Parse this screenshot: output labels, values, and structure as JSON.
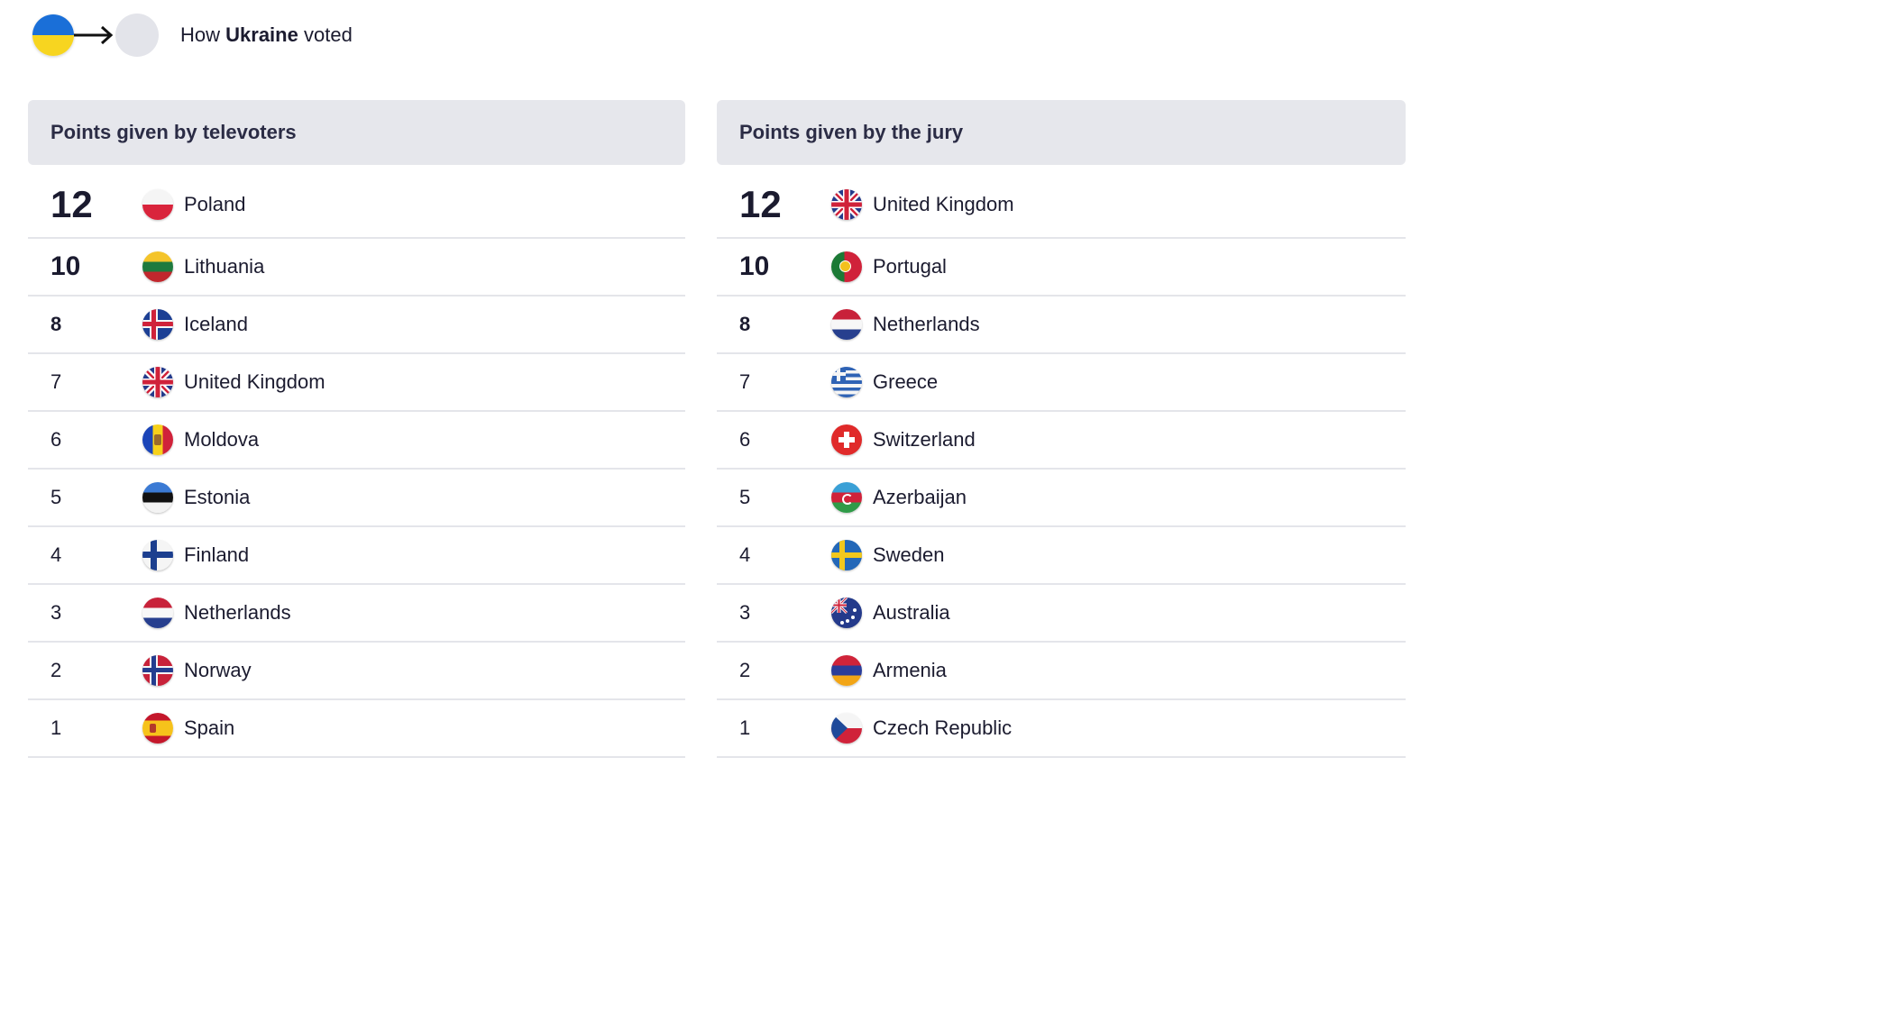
{
  "header": {
    "prefix": "How",
    "country": "Ukraine",
    "suffix": "voted"
  },
  "televoters": {
    "title": "Points given by televoters",
    "rows": [
      {
        "points": "12",
        "country": "Poland",
        "flag": "poland-flag-icon"
      },
      {
        "points": "10",
        "country": "Lithuania",
        "flag": "lithuania-flag-icon"
      },
      {
        "points": "8",
        "country": "Iceland",
        "flag": "iceland-flag-icon"
      },
      {
        "points": "7",
        "country": "United Kingdom",
        "flag": "united-kingdom-flag-icon"
      },
      {
        "points": "6",
        "country": "Moldova",
        "flag": "moldova-flag-icon"
      },
      {
        "points": "5",
        "country": "Estonia",
        "flag": "estonia-flag-icon"
      },
      {
        "points": "4",
        "country": "Finland",
        "flag": "finland-flag-icon"
      },
      {
        "points": "3",
        "country": "Netherlands",
        "flag": "netherlands-flag-icon"
      },
      {
        "points": "2",
        "country": "Norway",
        "flag": "norway-flag-icon"
      },
      {
        "points": "1",
        "country": "Spain",
        "flag": "spain-flag-icon"
      }
    ]
  },
  "jury": {
    "title": "Points given by the jury",
    "rows": [
      {
        "points": "12",
        "country": "United Kingdom",
        "flag": "united-kingdom-flag-icon"
      },
      {
        "points": "10",
        "country": "Portugal",
        "flag": "portugal-flag-icon"
      },
      {
        "points": "8",
        "country": "Netherlands",
        "flag": "netherlands-flag-icon"
      },
      {
        "points": "7",
        "country": "Greece",
        "flag": "greece-flag-icon"
      },
      {
        "points": "6",
        "country": "Switzerland",
        "flag": "switzerland-flag-icon"
      },
      {
        "points": "5",
        "country": "Azerbaijan",
        "flag": "azerbaijan-flag-icon"
      },
      {
        "points": "4",
        "country": "Sweden",
        "flag": "sweden-flag-icon"
      },
      {
        "points": "3",
        "country": "Australia",
        "flag": "australia-flag-icon"
      },
      {
        "points": "2",
        "country": "Armenia",
        "flag": "armenia-flag-icon"
      },
      {
        "points": "1",
        "country": "Czech Republic",
        "flag": "czech-republic-flag-icon"
      }
    ]
  },
  "colors": {
    "panel_header_bg": "#e6e7ec",
    "divider": "#e4e5ea",
    "text": "#1b1b2f"
  }
}
